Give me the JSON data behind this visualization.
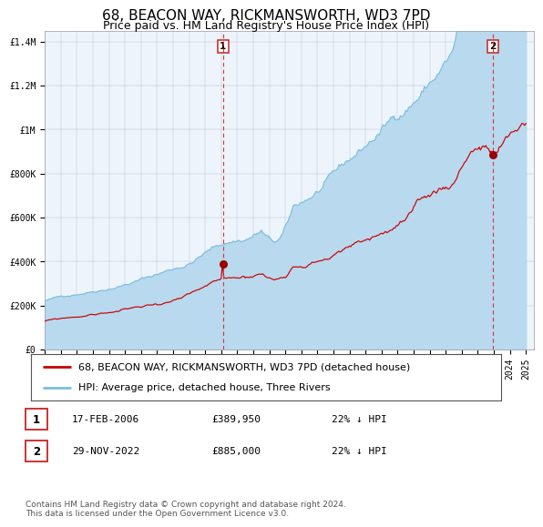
{
  "title": "68, BEACON WAY, RICKMANSWORTH, WD3 7PD",
  "subtitle": "Price paid vs. HM Land Registry's House Price Index (HPI)",
  "legend_line1": "68, BEACON WAY, RICKMANSWORTH, WD3 7PD (detached house)",
  "legend_line2": "HPI: Average price, detached house, Three Rivers",
  "annotation1": {
    "label": "1",
    "date": "17-FEB-2006",
    "price": "£389,950",
    "note": "22% ↓ HPI"
  },
  "annotation2": {
    "label": "2",
    "date": "29-NOV-2022",
    "price": "£885,000",
    "note": "22% ↓ HPI"
  },
  "footer": "Contains HM Land Registry data © Crown copyright and database right 2024.\nThis data is licensed under the Open Government Licence v3.0.",
  "hpi_color": "#7bbfde",
  "hpi_fill_color": "#b8d9ee",
  "price_color": "#cc0000",
  "plot_bg": "#eef4fb",
  "ylim": [
    0,
    1450000
  ],
  "xlim_start": 1995.0,
  "xlim_end": 2025.5,
  "marker1_x": 2006.12,
  "marker1_y": 389950,
  "marker2_x": 2022.92,
  "marker2_y": 885000,
  "vline1_x": 2006.12,
  "vline2_x": 2022.92,
  "title_fontsize": 11,
  "subtitle_fontsize": 9,
  "tick_fontsize": 7,
  "legend_fontsize": 8,
  "ann_fontsize": 8,
  "footer_fontsize": 6.5
}
